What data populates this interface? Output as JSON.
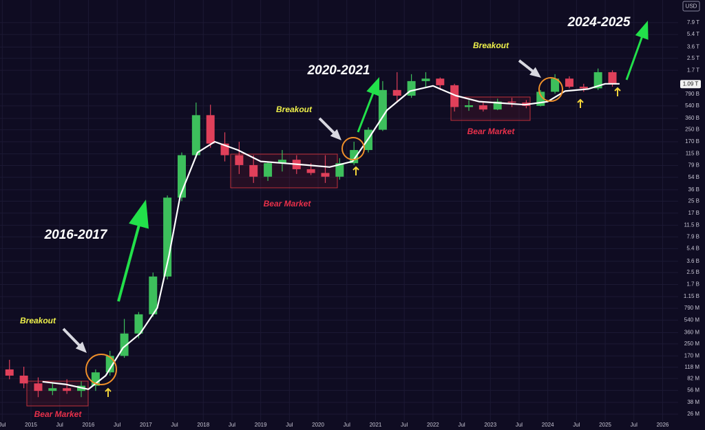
{
  "chart_data": {
    "type": "candlestick",
    "currency": "USD",
    "log_scale": true,
    "grid": true,
    "up_color": "#3dbf5c",
    "down_color": "#e0405a",
    "xlim": [
      2014.46,
      2026.27
    ],
    "ylim": [
      20800000,
      16400000000000
    ],
    "xticks": [
      {
        "value": 2014.5,
        "label": "Jul"
      },
      2015,
      {
        "value": 2015.5,
        "label": "Jul"
      },
      2016,
      {
        "value": 2016.5,
        "label": "Jul"
      },
      2017,
      {
        "value": 2017.5,
        "label": "Jul"
      },
      2018,
      {
        "value": 2018.5,
        "label": "Jul"
      },
      2019,
      {
        "value": 2019.5,
        "label": "Jul"
      },
      2020,
      {
        "value": 2020.5,
        "label": "Jul"
      },
      2021,
      {
        "value": 2021.5,
        "label": "Jul"
      },
      2022,
      {
        "value": 2022.5,
        "label": "Jul"
      },
      2023,
      {
        "value": 2023.5,
        "label": "Jul"
      },
      2024,
      {
        "value": 2024.5,
        "label": "Jul"
      },
      2025,
      {
        "value": 2025.5,
        "label": "Jul"
      },
      2026
    ],
    "yticks": [
      {
        "value": 7900000000000,
        "label": "7.9 T"
      },
      {
        "value": 5400000000000,
        "label": "5.4 T"
      },
      {
        "value": 3600000000000,
        "label": "3.6 T"
      },
      {
        "value": 2500000000000,
        "label": "2.5 T"
      },
      {
        "value": 1700000000000,
        "label": "1.7 T"
      },
      {
        "value": 790000000000,
        "label": "790 B"
      },
      {
        "value": 540000000000,
        "label": "540 B"
      },
      {
        "value": 360000000000,
        "label": "360 B"
      },
      {
        "value": 250000000000,
        "label": "250 B"
      },
      {
        "value": 170000000000,
        "label": "170 B"
      },
      {
        "value": 115000000000,
        "label": "115 B"
      },
      {
        "value": 79000000000,
        "label": "79 B"
      },
      {
        "value": 54000000000,
        "label": "54 B"
      },
      {
        "value": 36000000000,
        "label": "36 B"
      },
      {
        "value": 25000000000,
        "label": "25 B"
      },
      {
        "value": 17000000000,
        "label": "17 B"
      },
      {
        "value": 11500000000,
        "label": "11.5 B"
      },
      {
        "value": 7900000000,
        "label": "7.9 B"
      },
      {
        "value": 5400000000,
        "label": "5.4 B"
      },
      {
        "value": 3600000000,
        "label": "3.6 B"
      },
      {
        "value": 2500000000,
        "label": "2.5 B"
      },
      {
        "value": 1700000000,
        "label": "1.7 B"
      },
      {
        "value": 1150000000,
        "label": "1.15 B"
      },
      {
        "value": 790000000,
        "label": "790 M"
      },
      {
        "value": 540000000,
        "label": "540 M"
      },
      {
        "value": 360000000,
        "label": "360 M"
      },
      {
        "value": 250000000,
        "label": "250 M"
      },
      {
        "value": 170000000,
        "label": "170 M"
      },
      {
        "value": 118000000,
        "label": "118 M"
      },
      {
        "value": 82000000,
        "label": "82 M"
      },
      {
        "value": 56000000,
        "label": "56 M"
      },
      {
        "value": 38000000,
        "label": "38 M"
      },
      {
        "value": 26000000,
        "label": "26 M"
      }
    ],
    "current_price": {
      "value": 1090000000000,
      "label": "1.09 T"
    },
    "x": [
      2014.625,
      2014.875,
      2015.125,
      2015.375,
      2015.625,
      2015.875,
      2016.125,
      2016.375,
      2016.625,
      2016.875,
      2017.125,
      2017.375,
      2017.625,
      2017.875,
      2018.125,
      2018.375,
      2018.625,
      2018.875,
      2019.125,
      2019.375,
      2019.625,
      2019.875,
      2020.125,
      2020.375,
      2020.625,
      2020.875,
      2021.125,
      2021.375,
      2021.625,
      2021.875,
      2022.125,
      2022.375,
      2022.625,
      2022.875,
      2023.125,
      2023.375,
      2023.625,
      2023.875,
      2024.125,
      2024.375,
      2024.625,
      2024.875,
      2025.125
    ],
    "open": [
      110000000,
      90000000,
      70000000,
      55000000,
      60000000,
      55000000,
      65000000,
      100000000,
      170000000,
      350000000,
      650000000,
      2200000000,
      28000000000,
      110000000000,
      400000000000,
      160000000000,
      110000000000,
      80000000000,
      55000000000,
      85000000000,
      95000000000,
      70000000000,
      62000000000,
      55000000000,
      85000000000,
      130000000000,
      250000000000,
      900000000000,
      750000000000,
      1200000000000,
      1300000000000,
      1050000000000,
      520000000000,
      550000000000,
      480000000000,
      620000000000,
      600000000000,
      540000000000,
      850000000000,
      1300000000000,
      1000000000000,
      950000000000,
      1600000000000
    ],
    "high": [
      150000000,
      120000000,
      85000000,
      70000000,
      80000000,
      75000000,
      110000000,
      200000000,
      560000000,
      700000000,
      2500000000,
      30000000000,
      120000000000,
      600000000000,
      560000000000,
      230000000000,
      170000000000,
      110000000000,
      90000000000,
      130000000000,
      110000000000,
      85000000000,
      110000000000,
      100000000000,
      170000000000,
      270000000000,
      1200000000000,
      1600000000000,
      1500000000000,
      1600000000000,
      1350000000000,
      1100000000000,
      650000000000,
      620000000000,
      680000000000,
      700000000000,
      650000000000,
      900000000000,
      1500000000000,
      1400000000000,
      1100000000000,
      1800000000000,
      1700000000000
    ],
    "low": [
      80000000,
      60000000,
      45000000,
      48000000,
      50000000,
      45000000,
      55000000,
      90000000,
      160000000,
      300000000,
      600000000,
      2000000000,
      25000000000,
      100000000000,
      140000000000,
      90000000000,
      60000000000,
      45000000000,
      48000000000,
      65000000000,
      60000000000,
      58000000000,
      45000000000,
      50000000000,
      80000000000,
      120000000000,
      240000000000,
      600000000000,
      700000000000,
      1000000000000,
      900000000000,
      450000000000,
      460000000000,
      450000000000,
      470000000000,
      520000000000,
      500000000000,
      530000000000,
      800000000000,
      950000000000,
      850000000000,
      900000000000,
      1000000000000
    ],
    "close": [
      90000000,
      70000000,
      55000000,
      60000000,
      55000000,
      65000000,
      100000000,
      170000000,
      350000000,
      650000000,
      2200000000,
      28000000000,
      110000000000,
      400000000000,
      160000000000,
      110000000000,
      80000000000,
      55000000000,
      85000000000,
      95000000000,
      70000000000,
      62000000000,
      55000000000,
      85000000000,
      130000000000,
      250000000000,
      900000000000,
      750000000000,
      1200000000000,
      1300000000000,
      1050000000000,
      520000000000,
      550000000000,
      480000000000,
      620000000000,
      600000000000,
      540000000000,
      850000000000,
      1300000000000,
      1000000000000,
      950000000000,
      1600000000000,
      1090000000000
    ],
    "moving_average": {
      "color": "#ffffff",
      "x": [
        2015.2,
        2015.6,
        2016.0,
        2016.3,
        2016.6,
        2016.9,
        2017.2,
        2017.4,
        2017.6,
        2017.9,
        2018.2,
        2018.6,
        2019.0,
        2019.4,
        2019.8,
        2020.2,
        2020.6,
        2020.9,
        2021.2,
        2021.6,
        2022.0,
        2022.4,
        2022.8,
        2023.2,
        2023.6,
        2024.0,
        2024.3,
        2024.7,
        2025.0,
        2025.25
      ],
      "values": [
        74000000,
        68000000,
        58000000,
        90000000,
        220000000,
        350000000,
        800000000,
        4200000000,
        30000000000,
        120000000000,
        170000000000,
        130000000000,
        90000000000,
        85000000000,
        80000000000,
        75000000000,
        90000000000,
        200000000000,
        470000000000,
        870000000000,
        1030000000000,
        750000000000,
        620000000000,
        590000000000,
        560000000000,
        620000000000,
        870000000000,
        930000000000,
        1100000000000,
        1100000000000
      ]
    },
    "annotations": {
      "periods": [
        "2016-2017",
        "2020-2021",
        "2024-2025"
      ],
      "breakouts": [
        "Breakout",
        "Breakout",
        "Breakout"
      ],
      "bear_markets": [
        "Bear Market",
        "Bear Market",
        "Bear Market"
      ]
    }
  }
}
